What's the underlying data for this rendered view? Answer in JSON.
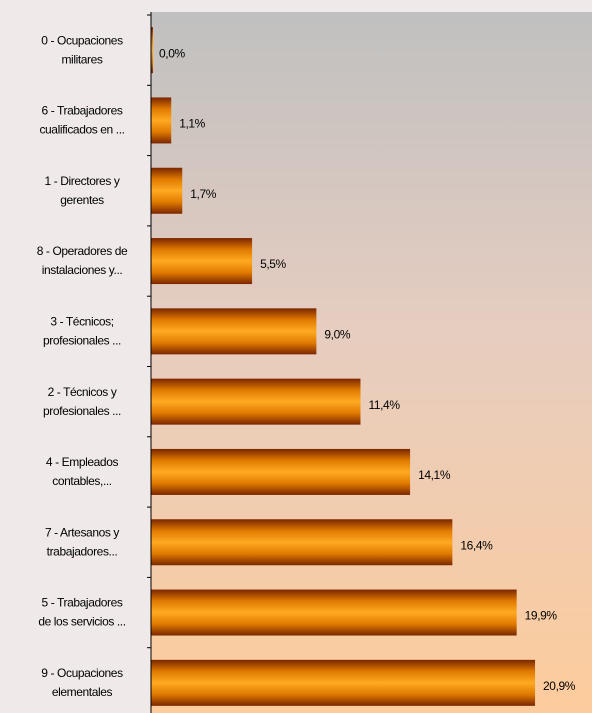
{
  "chart_data": {
    "type": "bar",
    "orientation": "horizontal",
    "categories": [
      [
        "0 - Ocupaciones",
        "militares"
      ],
      [
        "6 - Trabajadores",
        "cualificados en ..."
      ],
      [
        "1 - Directores y",
        "gerentes"
      ],
      [
        "8 - Operadores de",
        "instalaciones y..."
      ],
      [
        "3 - Técnicos;",
        "profesionales ..."
      ],
      [
        "2 - Técnicos y",
        "profesionales ..."
      ],
      [
        "4 - Empleados",
        "contables,..."
      ],
      [
        "7 - Artesanos y",
        "trabajadores..."
      ],
      [
        "5 - Trabajadores",
        "de los servicios ..."
      ],
      [
        "9 - Ocupaciones",
        "elementales"
      ]
    ],
    "values": [
      0.0,
      1.1,
      1.7,
      5.5,
      9.0,
      11.4,
      14.1,
      16.4,
      19.9,
      20.9
    ],
    "value_labels": [
      "0,0%",
      "1,1%",
      "1,7%",
      "5,5%",
      "9,0%",
      "11,4%",
      "14,1%",
      "16,4%",
      "19,9%",
      "20,9%"
    ],
    "color": "#ff9900",
    "xlim": [
      0,
      24
    ]
  }
}
